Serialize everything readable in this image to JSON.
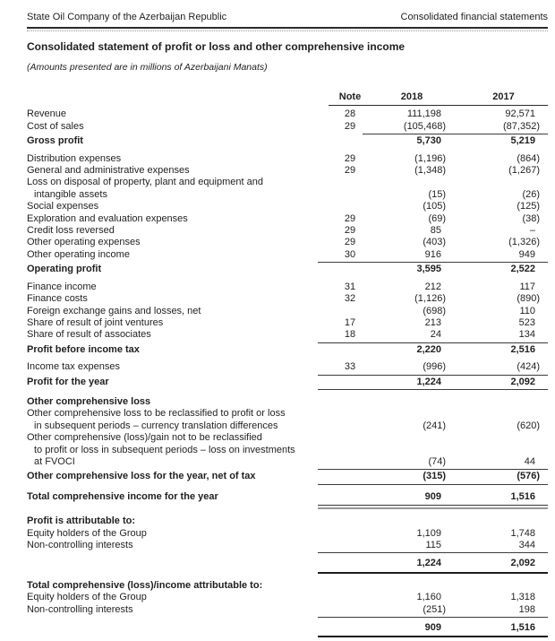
{
  "page_header": {
    "left": "State Oil Company of the Azerbaijan Republic",
    "right": "Consolidated financial statements"
  },
  "title": "Consolidated statement of profit or loss and other comprehensive income",
  "subtitle": "(Amounts presented are in millions of Azerbaijani Manats)",
  "columns": {
    "note": "Note",
    "y2018": "2018",
    "y2017": "2017"
  },
  "rows": [
    {
      "lines": [
        "Revenue"
      ],
      "note": "28",
      "v2018": "111,198",
      "v2017": "92,571"
    },
    {
      "lines": [
        "Cost of sales"
      ],
      "note": "29",
      "v2018": "(105,468)",
      "v2017": "(87,352)",
      "rule": "thin narrow"
    },
    {
      "lines": [
        "Gross profit"
      ],
      "bold": true,
      "v2018": "5,730",
      "v2017": "5,219"
    },
    {
      "gap": "section",
      "lines": [
        "Distribution expenses"
      ],
      "note": "29",
      "v2018": "(1,196)",
      "v2017": "(864)"
    },
    {
      "lines": [
        "General and administrative expenses"
      ],
      "note": "29",
      "v2018": "(1,348)",
      "v2017": "(1,267)"
    },
    {
      "lines": [
        "Loss on disposal of property, plant and equipment and",
        "intangible assets"
      ],
      "v2018": "(15)",
      "v2017": "(26)"
    },
    {
      "lines": [
        "Social expenses"
      ],
      "v2018": "(105)",
      "v2017": "(125)"
    },
    {
      "lines": [
        "Exploration and evaluation expenses"
      ],
      "note": "29",
      "v2018": "(69)",
      "v2017": "(38)"
    },
    {
      "lines": [
        "Credit loss reversed"
      ],
      "note": "29",
      "v2018": "85",
      "v2017": "–"
    },
    {
      "lines": [
        "Other operating expenses"
      ],
      "note": "29",
      "v2018": "(403)",
      "v2017": "(1,326)"
    },
    {
      "lines": [
        "Other operating income"
      ],
      "note": "30",
      "v2018": "916",
      "v2017": "949",
      "rule": "thin wide"
    },
    {
      "lines": [
        "Operating profit"
      ],
      "bold": true,
      "v2018": "3,595",
      "v2017": "2,522"
    },
    {
      "gap": "section",
      "lines": [
        "Finance income"
      ],
      "note": "31",
      "v2018": "212",
      "v2017": "117"
    },
    {
      "lines": [
        "Finance costs"
      ],
      "note": "32",
      "v2018": "(1,126)",
      "v2017": "(890)"
    },
    {
      "lines": [
        "Foreign exchange gains and losses, net"
      ],
      "v2018": "(698)",
      "v2017": "110"
    },
    {
      "lines": [
        "Share of result of joint ventures"
      ],
      "note": "17",
      "v2018": "213",
      "v2017": "523"
    },
    {
      "lines": [
        "Share of result of associates"
      ],
      "note": "18",
      "v2018": "24",
      "v2017": "134",
      "rule": "thin wide"
    },
    {
      "lines": [
        "Profit before income tax"
      ],
      "bold": true,
      "v2018": "2,220",
      "v2017": "2,516"
    },
    {
      "gap": "section",
      "lines": [
        "Income tax expenses"
      ],
      "note": "33",
      "v2018": "(996)",
      "v2017": "(424)",
      "rule": "thin wide"
    },
    {
      "lines": [
        "Profit for the year"
      ],
      "bold": true,
      "v2018": "1,224",
      "v2017": "2,092",
      "rule": "thin wide"
    },
    {
      "gap": "section",
      "lines": [
        "Other comprehensive loss"
      ],
      "bold": true
    },
    {
      "lines": [
        "Other comprehensive loss to be reclassified to profit or loss",
        "in subsequent periods – currency translation differences"
      ],
      "v2018": "(241)",
      "v2017": "(620)"
    },
    {
      "lines": [
        "Other comprehensive (loss)/gain not to be reclassified",
        "to profit or loss in subsequent periods – loss on investments",
        "at FVOCI"
      ],
      "v2018": "(74)",
      "v2017": "44",
      "rule": "thin wide"
    },
    {
      "lines": [
        "Other comprehensive loss for the year, net of tax"
      ],
      "bold": true,
      "v2018": "(315)",
      "v2017": "(576)",
      "rule": "thin wide"
    },
    {
      "gap": "section",
      "lines": [
        "Total comprehensive income for the year"
      ],
      "bold": true,
      "v2018": "909",
      "v2017": "1,516",
      "rule": "double wide"
    },
    {
      "gap": "section",
      "lines": [
        "Profit is attributable to:"
      ],
      "bold": true
    },
    {
      "lines": [
        "Equity holders of the Group"
      ],
      "v2018": "1,109",
      "v2017": "1,748"
    },
    {
      "lines": [
        "Non-controlling interests"
      ],
      "v2018": "115",
      "v2017": "344",
      "rule": "thin wide"
    },
    {
      "gap": "small",
      "lines": [
        ""
      ],
      "bold": true,
      "v2018": "1,224",
      "v2017": "2,092",
      "rule": "thick wide"
    },
    {
      "gap": "section",
      "lines": [
        "Total comprehensive (loss)/income attributable to:"
      ],
      "bold": true
    },
    {
      "lines": [
        "Equity holders of the Group"
      ],
      "v2018": "1,160",
      "v2017": "1,318"
    },
    {
      "lines": [
        "Non-controlling interests"
      ],
      "v2018": "(251)",
      "v2017": "198",
      "rule": "thin wide"
    },
    {
      "gap": "small",
      "lines": [
        ""
      ],
      "bold": true,
      "v2018": "909",
      "v2017": "1,516",
      "rule": "thick wide"
    }
  ]
}
